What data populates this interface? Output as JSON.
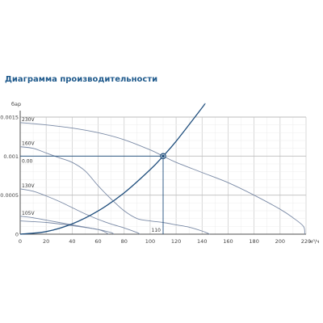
{
  "page_title": "Диаграмма производительности",
  "chart_data": {
    "type": "line",
    "title": "Диаграмма производительности",
    "ylabel": "бар",
    "xlabel": "м³/ч",
    "xlim": [
      0,
      220
    ],
    "ylim": [
      0,
      0.0015
    ],
    "x_ticks": [
      0,
      20,
      40,
      60,
      80,
      100,
      120,
      140,
      160,
      180,
      200,
      220
    ],
    "y_ticks": [
      {
        "value": 0,
        "label": "0"
      },
      {
        "value": 0.0005,
        "label": "0.0005"
      },
      {
        "value": 0.001,
        "label": "0.001"
      },
      {
        "value": 0.0015,
        "label": "0.0015"
      }
    ],
    "grid": true,
    "series": [
      {
        "name": "230V",
        "points": [
          [
            0,
            0.00143
          ],
          [
            20,
            0.0014
          ],
          [
            40,
            0.00136
          ],
          [
            60,
            0.0013
          ],
          [
            80,
            0.00121
          ],
          [
            100,
            0.00108
          ],
          [
            110,
            0.001
          ],
          [
            120,
            0.00092
          ],
          [
            140,
            0.00079
          ],
          [
            160,
            0.00066
          ],
          [
            180,
            0.0005
          ],
          [
            200,
            0.00032
          ],
          [
            210,
            0.00021
          ],
          [
            218,
            0.0001
          ],
          [
            219,
            0
          ]
        ]
      },
      {
        "name": "160V",
        "points": [
          [
            0,
            0.00112
          ],
          [
            10,
            0.0011
          ],
          [
            20,
            0.00104
          ],
          [
            30,
            0.00098
          ],
          [
            40,
            0.00092
          ],
          [
            50,
            0.00081
          ],
          [
            60,
            0.00062
          ],
          [
            70,
            0.00045
          ],
          [
            80,
            0.0003
          ],
          [
            90,
            0.0002
          ],
          [
            100,
            0.00017
          ],
          [
            110,
            0.00015
          ],
          [
            120,
            0.00012
          ],
          [
            130,
            9e-05
          ],
          [
            140,
            4e-05
          ],
          [
            146,
            0
          ]
        ]
      },
      {
        "name": "130V",
        "points": [
          [
            0,
            0.00058
          ],
          [
            10,
            0.00055
          ],
          [
            20,
            0.00049
          ],
          [
            30,
            0.00042
          ],
          [
            40,
            0.00034
          ],
          [
            50,
            0.00026
          ],
          [
            60,
            0.00019
          ],
          [
            70,
            0.00013
          ],
          [
            80,
            8e-05
          ],
          [
            90,
            2e-05
          ],
          [
            92,
            0
          ]
        ]
      },
      {
        "name": "105V",
        "points": [
          [
            0,
            0.00023
          ],
          [
            10,
            0.00021
          ],
          [
            20,
            0.00018
          ],
          [
            30,
            0.00015
          ],
          [
            40,
            0.00012
          ],
          [
            50,
            9e-05
          ],
          [
            60,
            6e-05
          ],
          [
            65,
            3e-05
          ],
          [
            68,
            0
          ]
        ]
      },
      {
        "name": "",
        "points": [
          [
            0,
            0.00017
          ],
          [
            20,
            0.00015
          ],
          [
            40,
            0.00011
          ],
          [
            60,
            6e-05
          ],
          [
            70,
            2e-05
          ],
          [
            72,
            0
          ]
        ]
      }
    ],
    "system_curve": [
      [
        0,
        0
      ],
      [
        20,
        3.3e-05
      ],
      [
        40,
        0.000132
      ],
      [
        60,
        0.000298
      ],
      [
        80,
        0.000529
      ],
      [
        100,
        0.000826
      ],
      [
        110,
        0.001
      ],
      [
        120,
        0.00119
      ],
      [
        140,
        0.00162
      ],
      [
        142,
        0.00167
      ]
    ],
    "operating_point": {
      "x": 110,
      "y": 0.001,
      "x_label": "110",
      "y_label": "0.00"
    },
    "colors": {
      "curves": "#7a8aa6",
      "system_curve": "#1f4e7d",
      "grid": "#d6d6d6",
      "axis": "#4d4d4d",
      "title": "#1f5a8c"
    }
  }
}
